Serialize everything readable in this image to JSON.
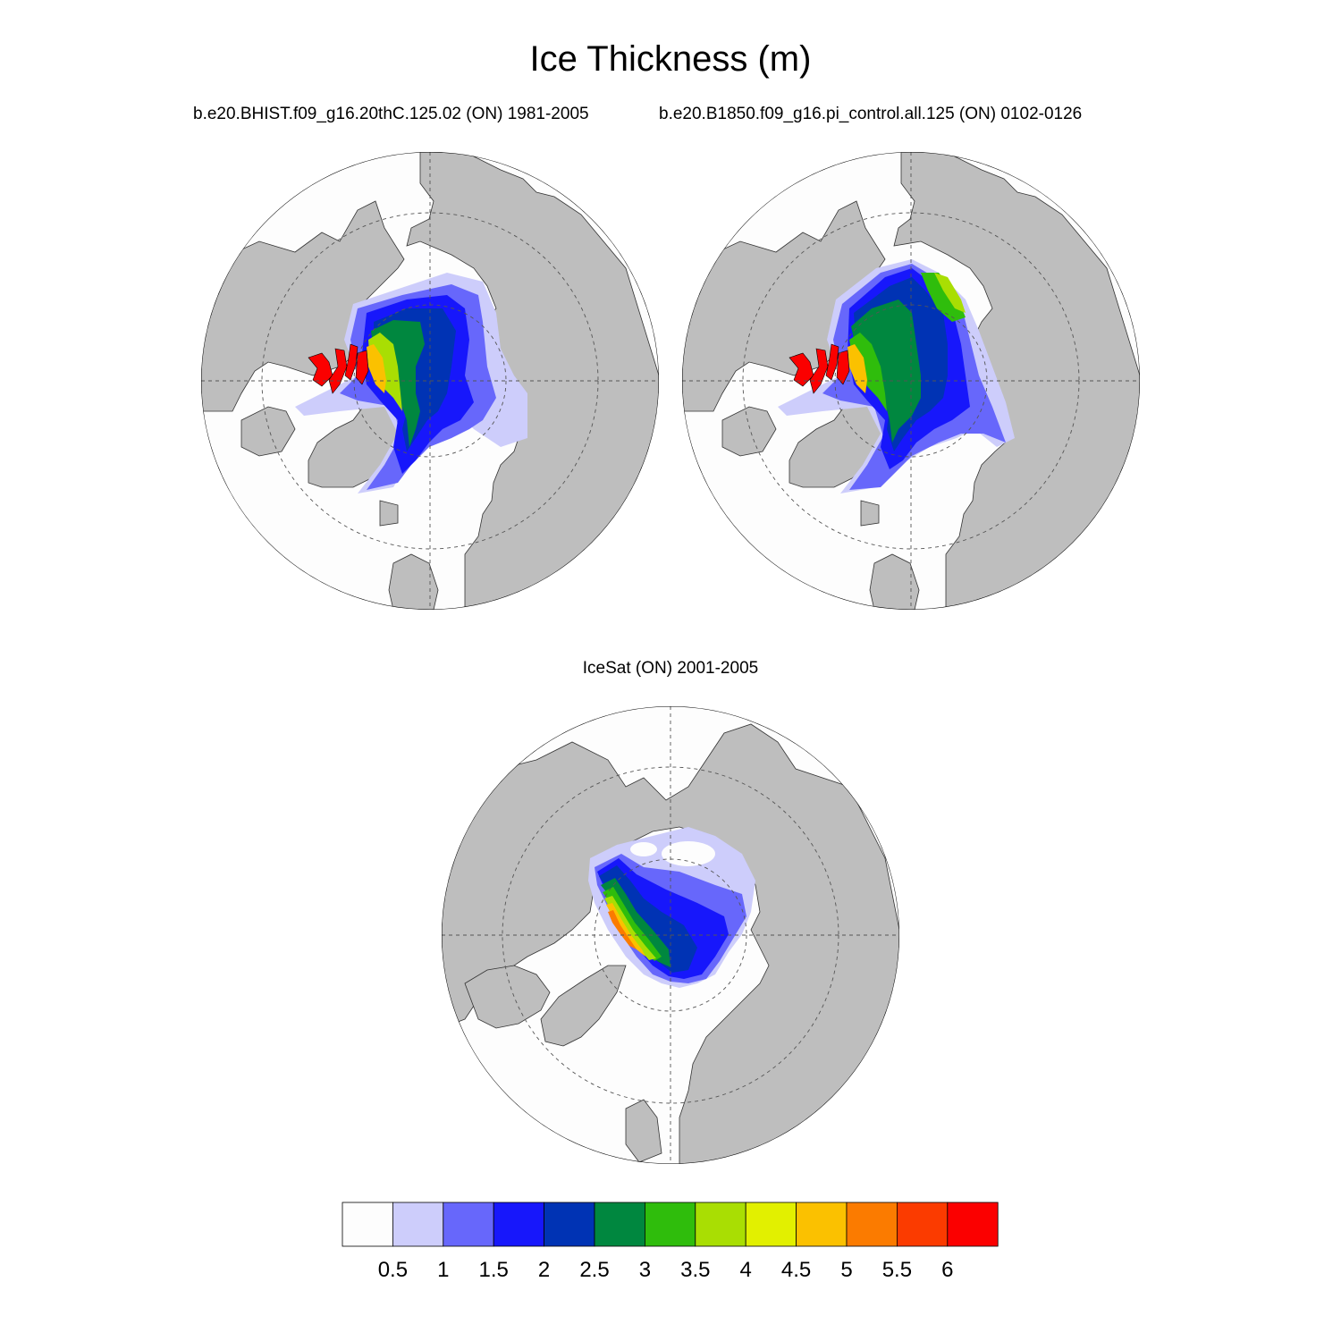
{
  "title": "Ice Thickness (m)",
  "panels": [
    {
      "id": "model-hist",
      "title": "b.e20.BHIST.f09_g16.20thC.125.02 (ON) 1981-2005"
    },
    {
      "id": "model-pi",
      "title": "b.e20.B1850.f09_g16.pi_control.all.125 (ON) 0102-0126"
    },
    {
      "id": "icesat",
      "title": "IceSat (ON) 2001-2005"
    }
  ],
  "colorbar": {
    "labels": [
      "0.5",
      "1",
      "1.5",
      "2",
      "2.5",
      "3",
      "3.5",
      "4",
      "4.5",
      "5",
      "5.5",
      "6"
    ],
    "levels": [
      0.5,
      1,
      1.5,
      2,
      2.5,
      3,
      3.5,
      4,
      4.5,
      5,
      5.5,
      6
    ],
    "colors": [
      "#fdfdfd",
      "#cdcdfb",
      "#6767fb",
      "#1717fb",
      "#0033b4",
      "#00873f",
      "#2fbd0c",
      "#a9de03",
      "#e2f000",
      "#fbc100",
      "#fb7b00",
      "#fb3b00",
      "#fb0000"
    ]
  },
  "map_colors": {
    "land": "#bebebe",
    "nodata": "#fdfdfd"
  }
}
